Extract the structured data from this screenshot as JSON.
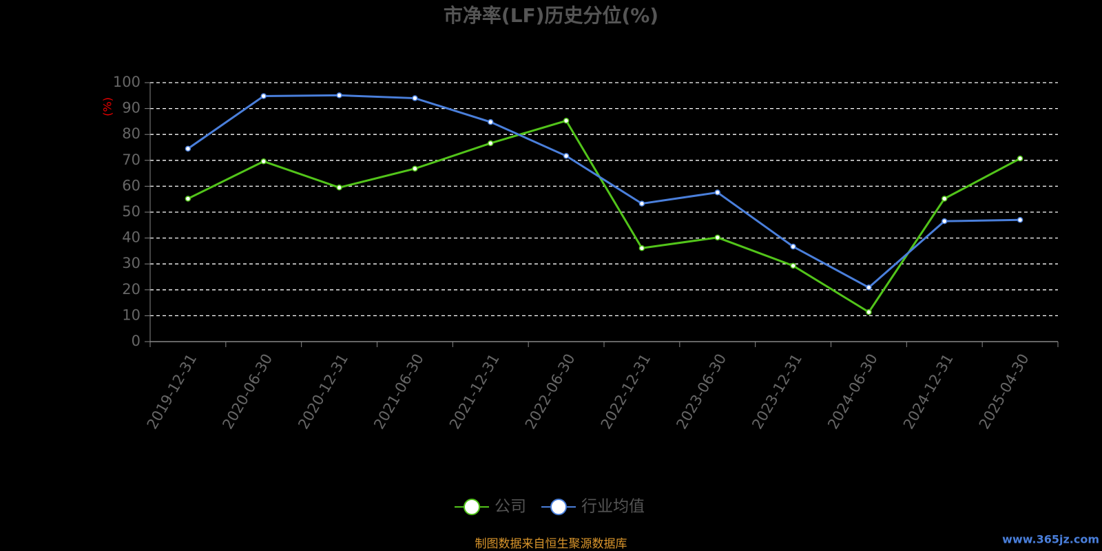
{
  "chart_data": {
    "type": "line",
    "title": "市净率(LF)历史分位(%)",
    "y_label": "(%)",
    "categories": [
      "2019-12-31",
      "2020-06-30",
      "2020-12-31",
      "2021-06-30",
      "2021-12-31",
      "2022-06-30",
      "2022-12-31",
      "2023-06-30",
      "2023-12-31",
      "2024-06-30",
      "2024-12-31",
      "2025-04-30"
    ],
    "series": [
      {
        "name": "公司",
        "color": "#52c41a",
        "values": [
          55.2,
          69.6,
          59.5,
          66.8,
          76.6,
          85.3,
          36.1,
          40.2,
          29.3,
          11.4,
          55.2,
          70.7
        ]
      },
      {
        "name": "行业均值",
        "color": "#4a7fdb",
        "values": [
          74.5,
          94.8,
          95.1,
          94.0,
          84.8,
          71.7,
          53.3,
          57.6,
          36.7,
          20.9,
          46.5,
          47.0
        ]
      }
    ],
    "ylim": [
      0,
      100
    ],
    "yticks": [
      0,
      10,
      20,
      30,
      40,
      50,
      60,
      70,
      80,
      90,
      100
    ],
    "grid": true,
    "legend": "bottom",
    "source": "制图数据来自恒生聚源数据库",
    "watermark": "www.365jz.com"
  }
}
